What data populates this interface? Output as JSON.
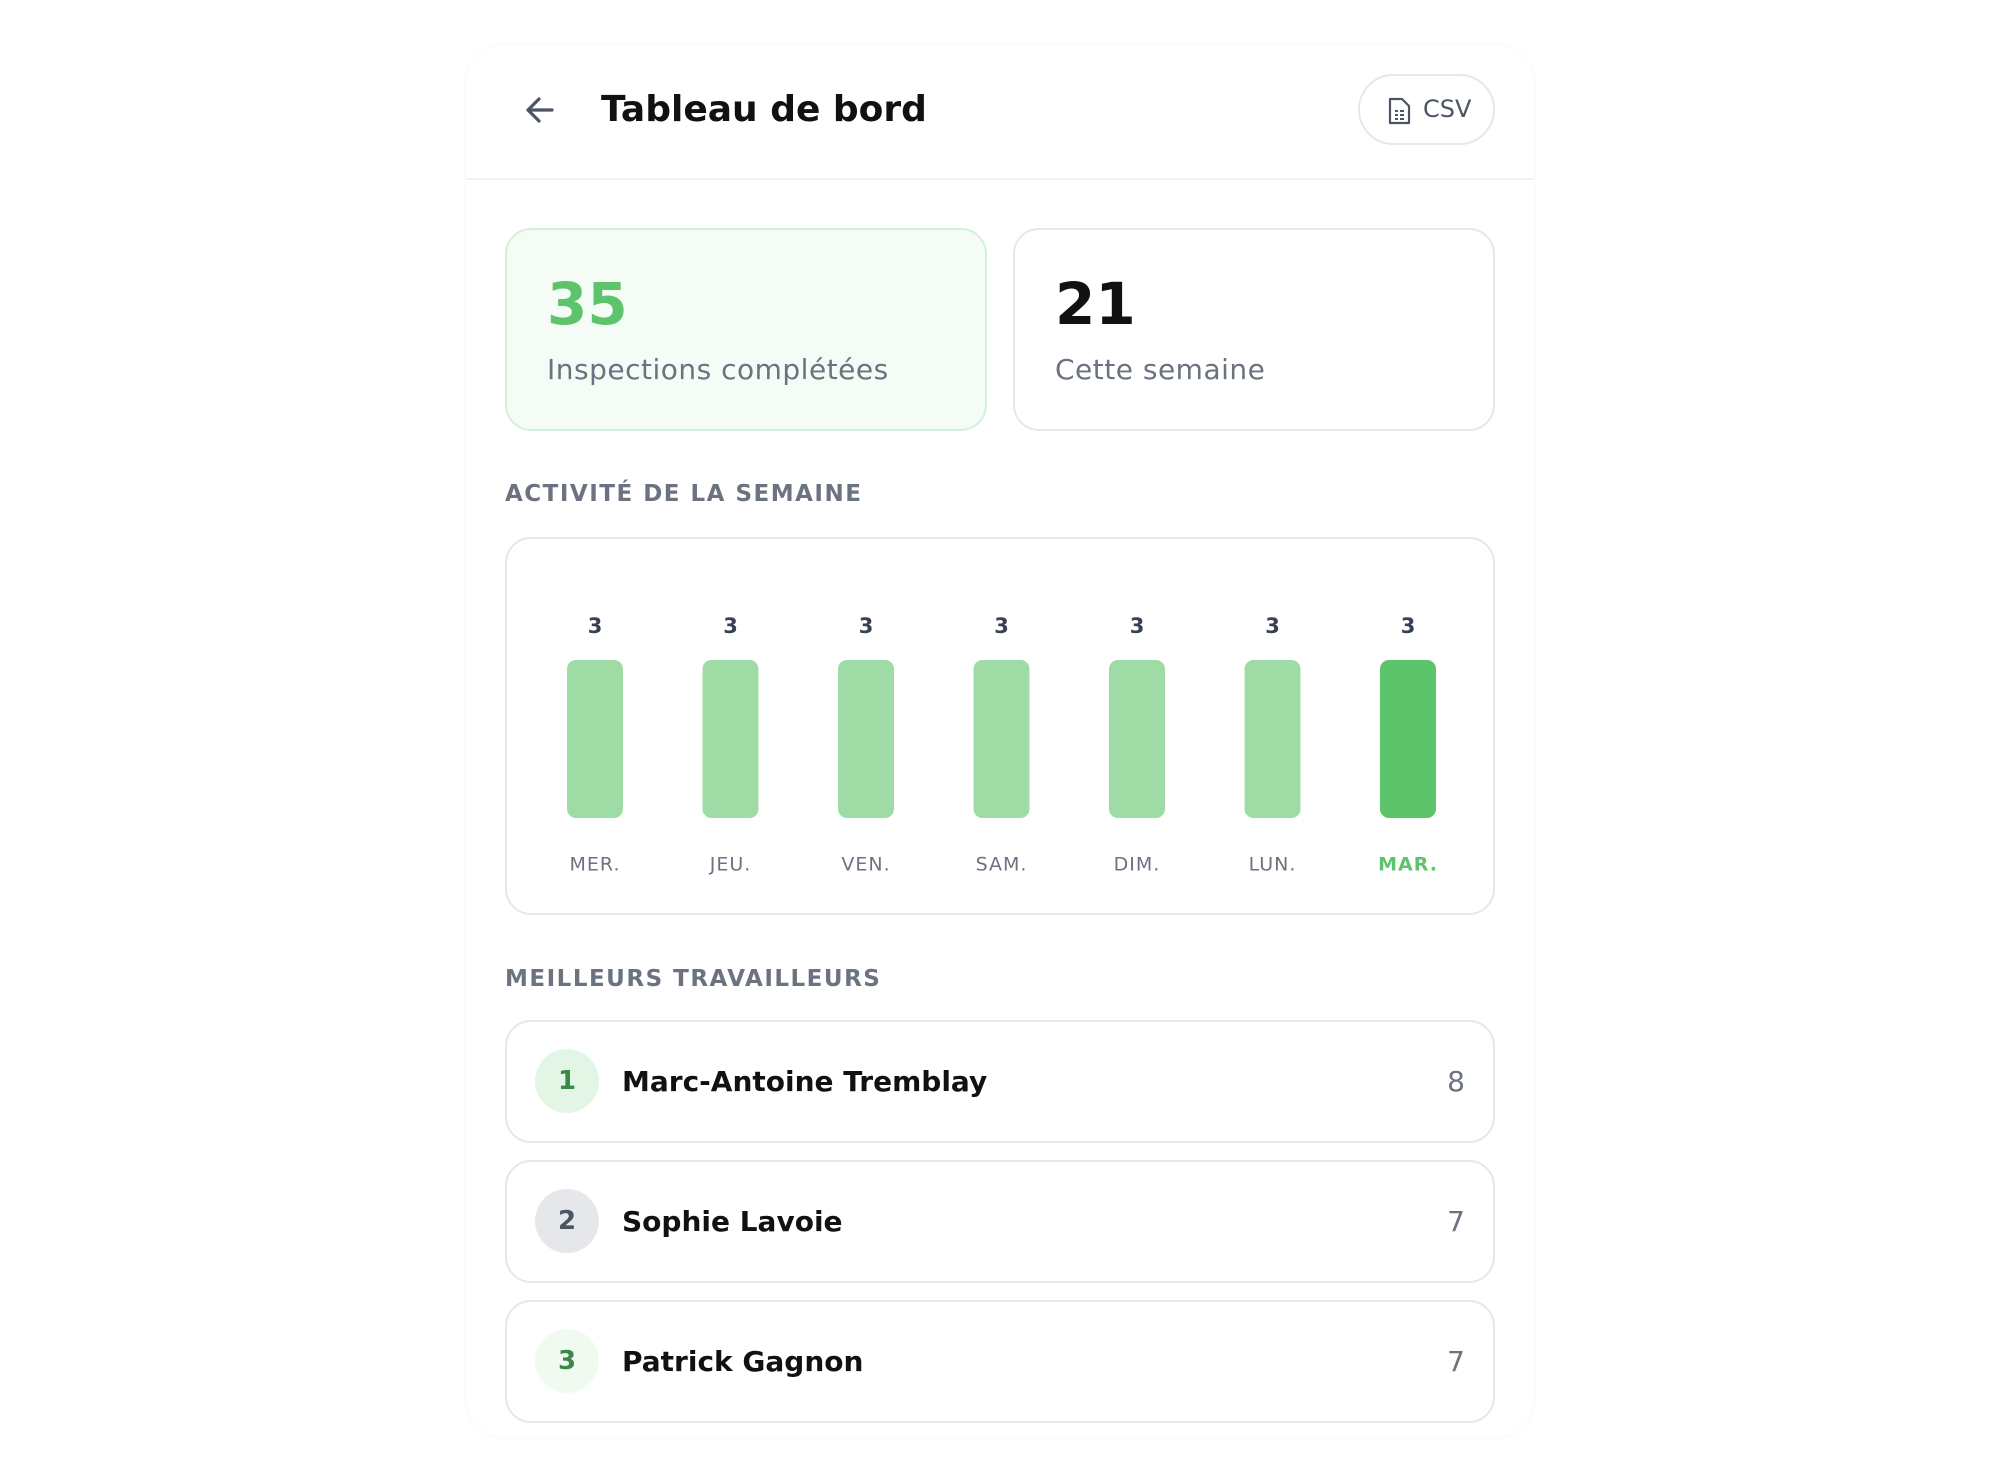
{
  "header": {
    "title": "Tableau de bord",
    "button": "CSV"
  },
  "stats": [
    {
      "value": 35,
      "label": "Inspections complétées"
    },
    {
      "value": 21,
      "label": "Cette semaine"
    }
  ],
  "sections": {
    "activity": "ACTIVITÉ DE LA SEMAINE",
    "workers": "MEILLEURS TRAVAILLEURS"
  },
  "chart_data": {
    "type": "bar",
    "categories": [
      "MER.",
      "JEU.",
      "VEN.",
      "SAM.",
      "DIM.",
      "LUN.",
      "MAR."
    ],
    "values": [
      3,
      3,
      3,
      3,
      3,
      3,
      3
    ],
    "colors": [
      "#9fdca5",
      "#9fdca5",
      "#9fdca5",
      "#9fdca5",
      "#9fdca5",
      "#9fdca5",
      "#5dc46b"
    ],
    "label_colors": [
      "#6b7280",
      "#6b7280",
      "#6b7280",
      "#6b7280",
      "#6b7280",
      "#6b7280",
      "#5dc46b"
    ]
  },
  "workers": [
    {
      "rank": 1,
      "name": "Marc-Antoine Tremblay",
      "count": 8
    },
    {
      "rank": 2,
      "name": "Sophie Lavoie",
      "count": 7
    },
    {
      "rank": 3,
      "name": "Patrick Gagnon",
      "count": 7
    }
  ]
}
